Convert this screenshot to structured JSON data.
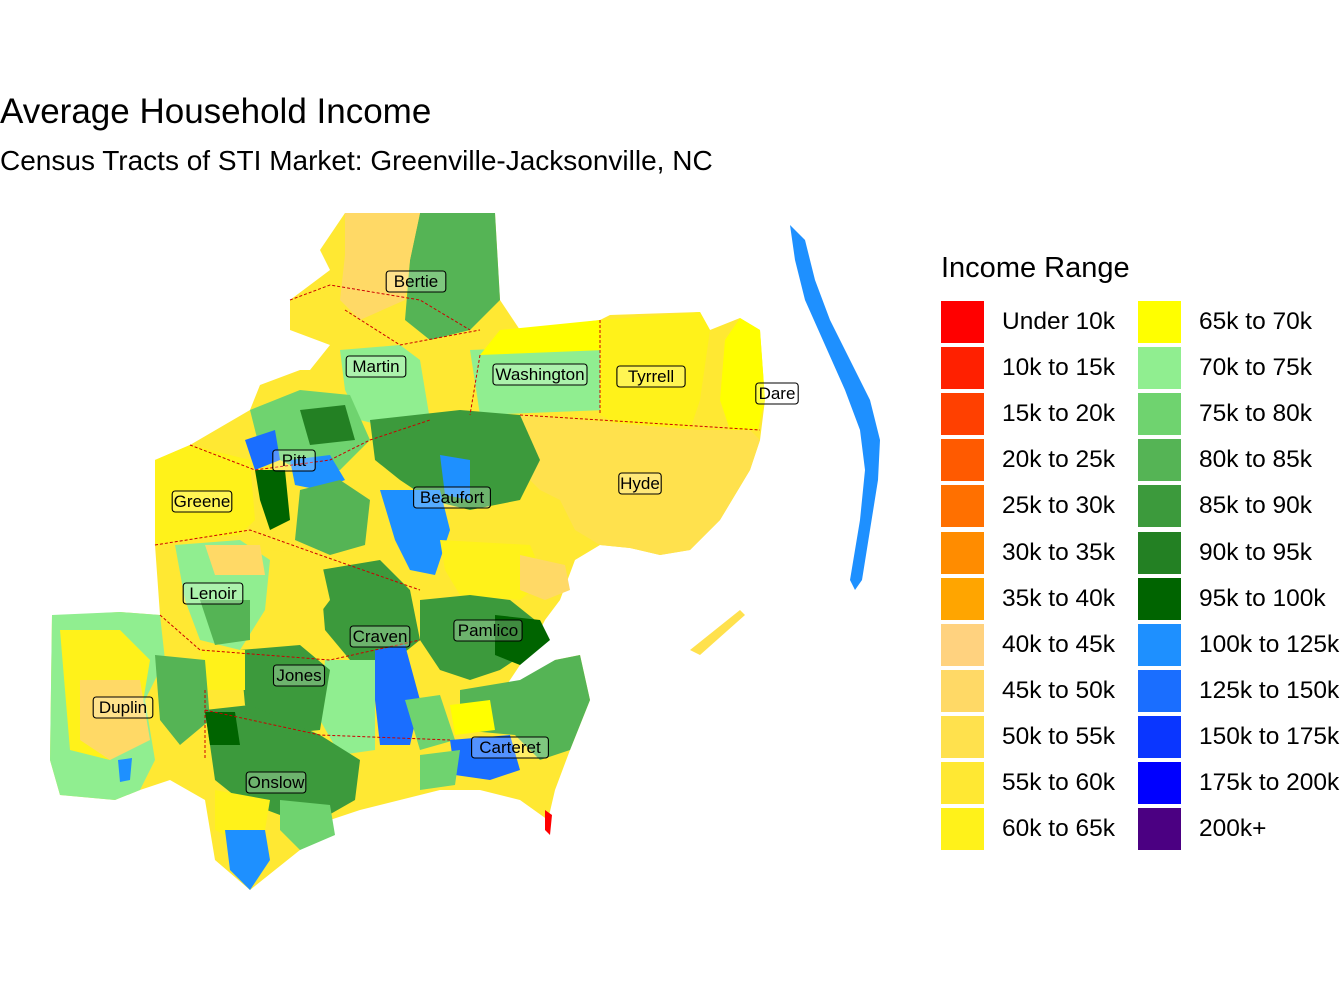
{
  "title": "Average Household Income",
  "subtitle": "Census Tracts of STI Market: Greenville-Jacksonville, NC",
  "legend": {
    "title": "Income Range",
    "items": [
      {
        "label": "Under 10k",
        "color": "#FF0000"
      },
      {
        "label": "10k to 15k",
        "color": "#FF2000"
      },
      {
        "label": "15k to 20k",
        "color": "#FF4000"
      },
      {
        "label": "20k to 25k",
        "color": "#FF5A00"
      },
      {
        "label": "25k to 30k",
        "color": "#FF7000"
      },
      {
        "label": "30k to 35k",
        "color": "#FF8C00"
      },
      {
        "label": "35k to 40k",
        "color": "#FFA500"
      },
      {
        "label": "40k to 45k",
        "color": "#FFD27F"
      },
      {
        "label": "45k to 50k",
        "color": "#FFD966"
      },
      {
        "label": "50k to 55k",
        "color": "#FFE14D"
      },
      {
        "label": "55k to 60k",
        "color": "#FFE833"
      },
      {
        "label": "60k to 65k",
        "color": "#FFF21A"
      },
      {
        "label": "65k to 70k",
        "color": "#FFFF00"
      },
      {
        "label": "70k to 75k",
        "color": "#90EE90"
      },
      {
        "label": "75k to 80k",
        "color": "#6FD36F"
      },
      {
        "label": "80k to 85k",
        "color": "#55B455"
      },
      {
        "label": "85k to 90k",
        "color": "#3C9A3C"
      },
      {
        "label": "90k to 95k",
        "color": "#238023"
      },
      {
        "label": "95k to 100k",
        "color": "#006400"
      },
      {
        "label": "100k to 125k",
        "color": "#1E90FF"
      },
      {
        "label": "125k to 150k",
        "color": "#1A6EFF"
      },
      {
        "label": "150k to 175k",
        "color": "#0A36FF"
      },
      {
        "label": "175k to 200k",
        "color": "#0000FF"
      },
      {
        "label": "200k+",
        "color": "#4B0082"
      }
    ]
  },
  "counties": [
    {
      "name": "Bertie"
    },
    {
      "name": "Martin"
    },
    {
      "name": "Washington"
    },
    {
      "name": "Tyrrell"
    },
    {
      "name": "Dare"
    },
    {
      "name": "Pitt"
    },
    {
      "name": "Greene"
    },
    {
      "name": "Beaufort"
    },
    {
      "name": "Hyde"
    },
    {
      "name": "Lenoir"
    },
    {
      "name": "Craven"
    },
    {
      "name": "Pamlico"
    },
    {
      "name": "Jones"
    },
    {
      "name": "Duplin"
    },
    {
      "name": "Carteret"
    },
    {
      "name": "Onslow"
    }
  ]
}
